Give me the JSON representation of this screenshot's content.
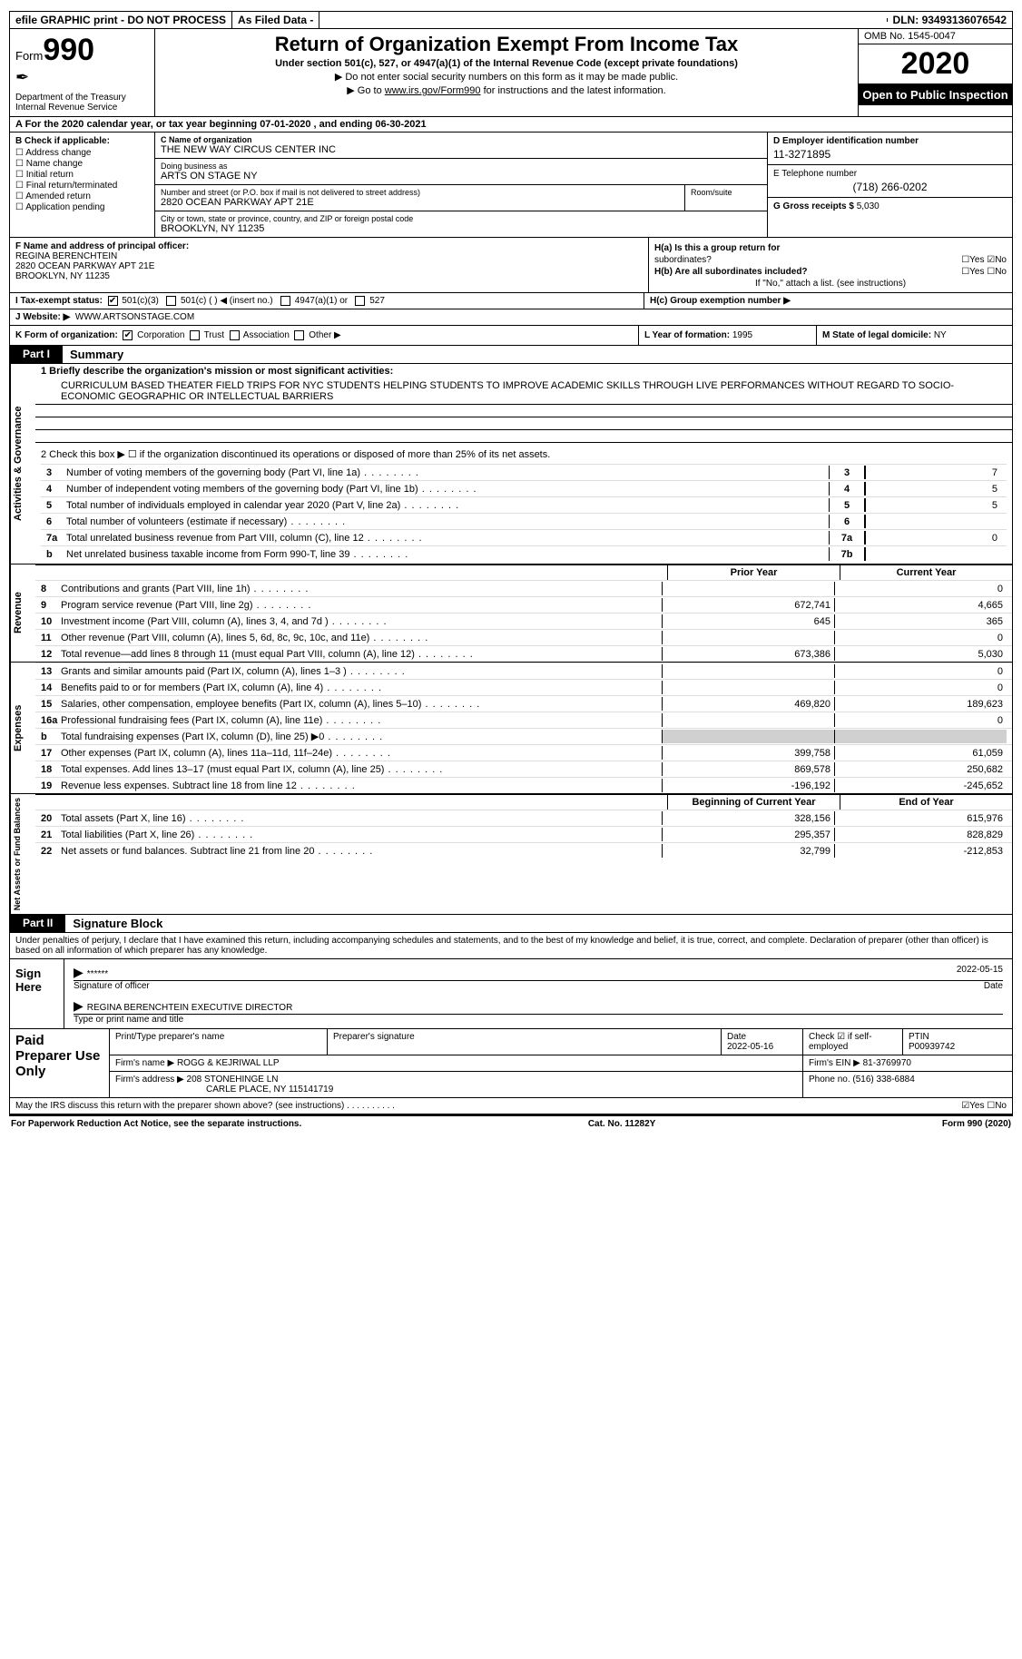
{
  "topbar": {
    "efile": "efile GRAPHIC print - DO NOT PROCESS",
    "asfiled": "As Filed Data -",
    "dln_label": "DLN:",
    "dln": "93493136076542"
  },
  "header": {
    "form_prefix": "Form",
    "form_num": "990",
    "dept": "Department of the Treasury\nInternal Revenue Service",
    "title": "Return of Organization Exempt From Income Tax",
    "sub": "Under section 501(c), 527, or 4947(a)(1) of the Internal Revenue Code (except private foundations)",
    "note1": "▶ Do not enter social security numbers on this form as it may be made public.",
    "note2_pre": "▶ Go to ",
    "note2_link": "www.irs.gov/Form990",
    "note2_post": " for instructions and the latest information.",
    "omb": "OMB No. 1545-0047",
    "year": "2020",
    "open_pub": "Open to Public Inspection"
  },
  "row_a": "A   For the 2020 calendar year, or tax year beginning 07-01-2020  , and ending 06-30-2021",
  "section_b": {
    "label": "B Check if applicable:",
    "items": [
      "Address change",
      "Name change",
      "Initial return",
      "Final return/terminated",
      "Amended return",
      "Application pending"
    ]
  },
  "section_c": {
    "c_label": "C Name of organization",
    "org_name": "THE NEW WAY CIRCUS CENTER INC",
    "dba_label": "Doing business as",
    "dba": "ARTS ON STAGE NY",
    "addr_label": "Number and street (or P.O. box if mail is not delivered to street address)",
    "room_label": "Room/suite",
    "addr": "2820 OCEAN PARKWAY APT 21E",
    "city_label": "City or town, state or province, country, and ZIP or foreign postal code",
    "city": "BROOKLYN, NY  11235"
  },
  "section_d": {
    "d_label": "D Employer identification number",
    "ein": "11-3271895",
    "e_label": "E Telephone number",
    "phone": "(718) 266-0202",
    "g_label": "G Gross receipts $",
    "gross": "5,030"
  },
  "section_f": {
    "label": "F  Name and address of principal officer:",
    "name": "REGINA BERENCHTEIN",
    "addr1": "2820 OCEAN PARKWAY APT 21E",
    "addr2": "BROOKLYN, NY  11235"
  },
  "section_h": {
    "ha": "H(a) Is this a group return for",
    "ha2": "subordinates?",
    "hb": "H(b) Are all subordinates included?",
    "hb_note": "If \"No,\" attach a list. (see instructions)",
    "hc": "H(c) Group exemption number ▶"
  },
  "section_i": {
    "label": "I   Tax-exempt status:",
    "opts": [
      "501(c)(3)",
      "501(c) (   ) ◀ (insert no.)",
      "4947(a)(1) or",
      "527"
    ]
  },
  "section_j": {
    "label": "J   Website: ▶",
    "val": "WWW.ARTSONSTAGE.COM"
  },
  "section_k": {
    "label": "K Form of organization:",
    "opts": [
      "Corporation",
      "Trust",
      "Association",
      "Other ▶"
    ]
  },
  "section_l": {
    "label": "L Year of formation:",
    "val": "1995"
  },
  "section_m": {
    "label": "M State of legal domicile:",
    "val": "NY"
  },
  "part1": {
    "tab": "Part I",
    "title": "Summary"
  },
  "mission": {
    "q": "1 Briefly describe the organization's mission or most significant activities:",
    "text": "CURRICULUM BASED THEATER FIELD TRIPS FOR NYC STUDENTS HELPING STUDENTS TO IMPROVE ACADEMIC SKILLS THROUGH LIVE PERFORMANCES WITHOUT REGARD TO SOCIO- ECONOMIC GEOGRAPHIC OR INTELLECTUAL BARRIERS"
  },
  "governance": {
    "label": "Activities & Governance",
    "l2": "2   Check this box ▶ ☐  if the organization discontinued its operations or disposed of more than 25% of its net assets.",
    "rows": [
      {
        "n": "3",
        "d": "Number of voting members of the governing body (Part VI, line 1a)",
        "c": "3",
        "v": "7"
      },
      {
        "n": "4",
        "d": "Number of independent voting members of the governing body (Part VI, line 1b)",
        "c": "4",
        "v": "5"
      },
      {
        "n": "5",
        "d": "Total number of individuals employed in calendar year 2020 (Part V, line 2a)",
        "c": "5",
        "v": "5"
      },
      {
        "n": "6",
        "d": "Total number of volunteers (estimate if necessary)",
        "c": "6",
        "v": ""
      },
      {
        "n": "7a",
        "d": "Total unrelated business revenue from Part VIII, column (C), line 12",
        "c": "7a",
        "v": "0"
      },
      {
        "n": "b",
        "d": "Net unrelated business taxable income from Form 990-T, line 39",
        "c": "7b",
        "v": ""
      }
    ]
  },
  "fin_hdr": {
    "prior": "Prior Year",
    "current": "Current Year"
  },
  "revenue": {
    "label": "Revenue",
    "rows": [
      {
        "n": "8",
        "d": "Contributions and grants (Part VIII, line 1h)",
        "p": "",
        "c": "0"
      },
      {
        "n": "9",
        "d": "Program service revenue (Part VIII, line 2g)",
        "p": "672,741",
        "c": "4,665"
      },
      {
        "n": "10",
        "d": "Investment income (Part VIII, column (A), lines 3, 4, and 7d )",
        "p": "645",
        "c": "365"
      },
      {
        "n": "11",
        "d": "Other revenue (Part VIII, column (A), lines 5, 6d, 8c, 9c, 10c, and 11e)",
        "p": "",
        "c": "0"
      },
      {
        "n": "12",
        "d": "Total revenue—add lines 8 through 11 (must equal Part VIII, column (A), line 12)",
        "p": "673,386",
        "c": "5,030"
      }
    ]
  },
  "expenses": {
    "label": "Expenses",
    "rows": [
      {
        "n": "13",
        "d": "Grants and similar amounts paid (Part IX, column (A), lines 1–3 )",
        "p": "",
        "c": "0"
      },
      {
        "n": "14",
        "d": "Benefits paid to or for members (Part IX, column (A), line 4)",
        "p": "",
        "c": "0"
      },
      {
        "n": "15",
        "d": "Salaries, other compensation, employee benefits (Part IX, column (A), lines 5–10)",
        "p": "469,820",
        "c": "189,623"
      },
      {
        "n": "16a",
        "d": "Professional fundraising fees (Part IX, column (A), line 11e)",
        "p": "",
        "c": "0"
      },
      {
        "n": "b",
        "d": "Total fundraising expenses (Part IX, column (D), line 25) ▶0",
        "p": "shade",
        "c": "shade"
      },
      {
        "n": "17",
        "d": "Other expenses (Part IX, column (A), lines 11a–11d, 11f–24e)",
        "p": "399,758",
        "c": "61,059"
      },
      {
        "n": "18",
        "d": "Total expenses. Add lines 13–17 (must equal Part IX, column (A), line 25)",
        "p": "869,578",
        "c": "250,682"
      },
      {
        "n": "19",
        "d": "Revenue less expenses. Subtract line 18 from line 12",
        "p": "-196,192",
        "c": "-245,652"
      }
    ]
  },
  "netassets": {
    "label": "Net Assets or Fund Balances",
    "hdr": {
      "beg": "Beginning of Current Year",
      "end": "End of Year"
    },
    "rows": [
      {
        "n": "20",
        "d": "Total assets (Part X, line 16)",
        "p": "328,156",
        "c": "615,976"
      },
      {
        "n": "21",
        "d": "Total liabilities (Part X, line 26)",
        "p": "295,357",
        "c": "828,829"
      },
      {
        "n": "22",
        "d": "Net assets or fund balances. Subtract line 21 from line 20",
        "p": "32,799",
        "c": "-212,853"
      }
    ]
  },
  "part2": {
    "tab": "Part II",
    "title": "Signature Block"
  },
  "sig_para": "Under penalties of perjury, I declare that I have examined this return, including accompanying schedules and statements, and to the best of my knowledge and belief, it is true, correct, and complete. Declaration of preparer (other than officer) is based on all information of which preparer has any knowledge.",
  "sign": {
    "label": "Sign Here",
    "stars": "******",
    "date": "2022-05-15",
    "sig_lbl": "Signature of officer",
    "date_lbl": "Date",
    "name": "REGINA BERENCHTEIN  EXECUTIVE DIRECTOR",
    "name_lbl": "Type or print name and title"
  },
  "prep": {
    "label": "Paid Preparer Use Only",
    "h_name": "Print/Type preparer's name",
    "h_sig": "Preparer's signature",
    "h_date": "Date",
    "h_check": "Check ☑ if self-employed",
    "h_ptin": "PTIN",
    "date": "2022-05-16",
    "ptin": "P00939742",
    "firm_lbl": "Firm's name    ▶",
    "firm": "ROGG & KEJRIWAL LLP",
    "ein_lbl": "Firm's EIN ▶",
    "ein": "81-3769970",
    "addr_lbl": "Firm's address ▶",
    "addr1": "208 STONEHINGE LN",
    "addr2": "CARLE PLACE, NY  115141719",
    "phone_lbl": "Phone no.",
    "phone": "(516) 338-6884"
  },
  "footer_q": "May the IRS discuss this return with the preparer shown above? (see instructions)   .   .   .   .   .   .   .   .   .   .",
  "footer": {
    "left": "For Paperwork Reduction Act Notice, see the separate instructions.",
    "mid": "Cat. No. 11282Y",
    "right": "Form 990 (2020)"
  }
}
